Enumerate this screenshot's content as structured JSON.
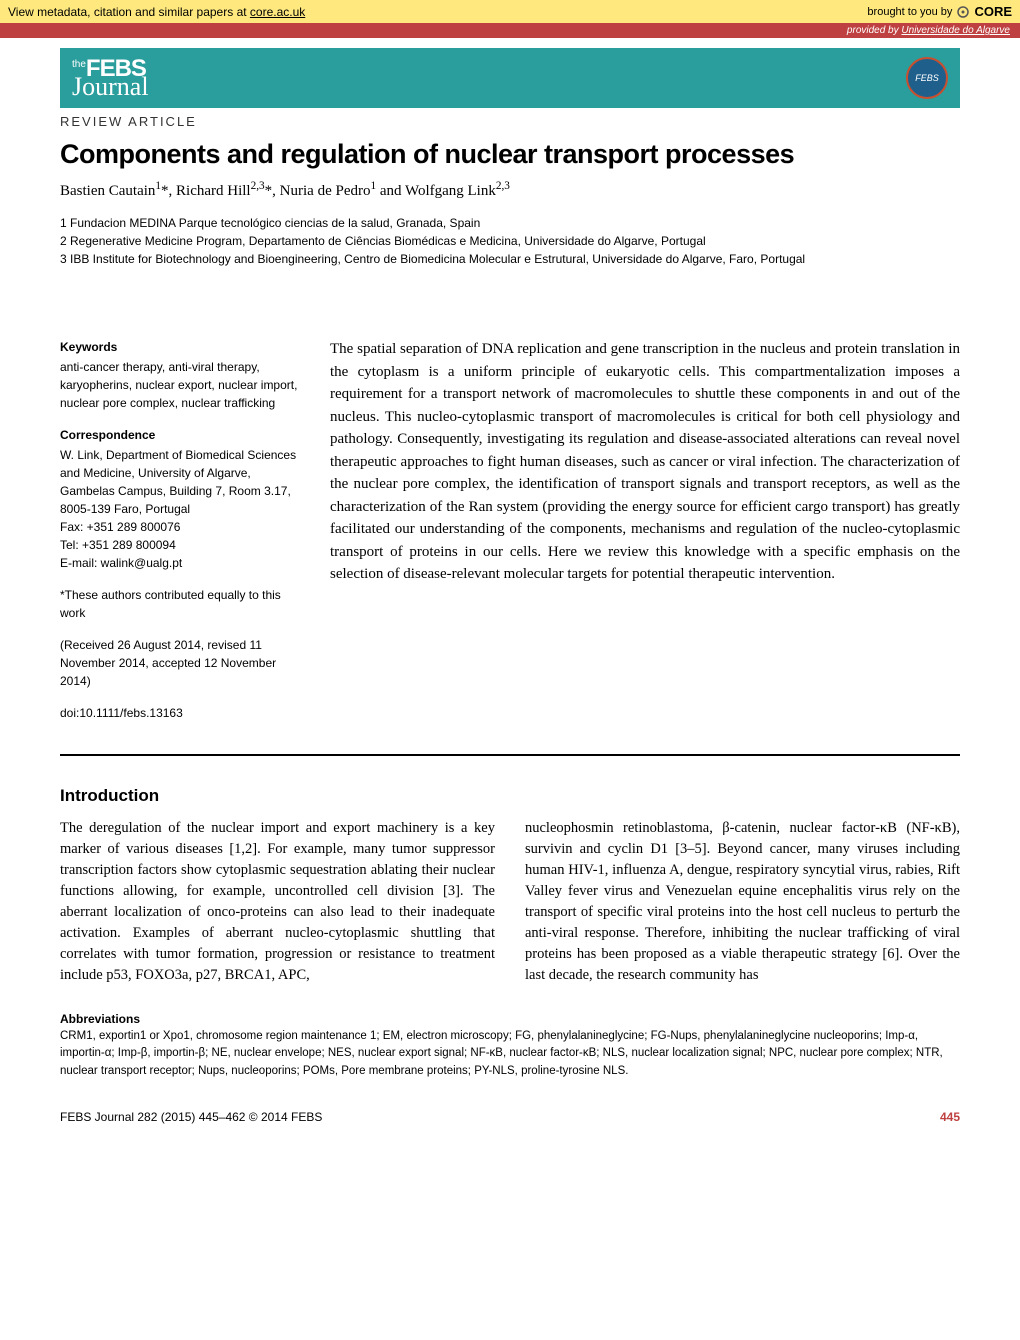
{
  "metadata_bar": {
    "left_prefix": "View metadata, citation and similar papers at ",
    "left_link": "core.ac.uk",
    "right_prefix": "brought to you by ",
    "core": "CORE"
  },
  "provider_bar": {
    "prefix": "provided by ",
    "source": "Universidade do Algarve"
  },
  "journal": {
    "the": "the",
    "name_top": "FEBS",
    "name_bottom": "Journal",
    "badge_text": "FEBS"
  },
  "article_type": "REVIEW ARTICLE",
  "title": "Components and regulation of nuclear transport processes",
  "authors_html": "Bastien Cautain<sup>1</sup>*, Richard Hill<sup>2,3</sup>*, Nuria de Pedro<sup>1</sup> and Wolfgang Link<sup>2,3</sup>",
  "affiliations": [
    "1 Fundacion MEDINA Parque tecnológico ciencias de la salud, Granada, Spain",
    "2 Regenerative Medicine Program, Departamento de Ciências Biomédicas e Medicina, Universidade do Algarve, Portugal",
    "3 IBB Institute for Biotechnology and Bioengineering, Centro de Biomedicina Molecular e Estrutural, Universidade do Algarve, Faro, Portugal"
  ],
  "sidebar": {
    "keywords_h": "Keywords",
    "keywords": "anti-cancer therapy, anti-viral therapy, karyopherins, nuclear export, nuclear import, nuclear pore complex, nuclear trafficking",
    "corr_h": "Correspondence",
    "corr": "W. Link, Department of Biomedical Sciences and Medicine, University of Algarve, Gambelas Campus, Building 7, Room 3.17, 8005-139 Faro, Portugal\nFax: +351 289 800076\nTel: +351 289 800094\nE-mail: walink@ualg.pt",
    "equal": "*These authors contributed equally to this work",
    "dates": "(Received 26 August 2014, revised 11 November 2014, accepted 12 November 2014)",
    "doi": "doi:10.1111/febs.13163"
  },
  "abstract": "The spatial separation of DNA replication and gene transcription in the nucleus and protein translation in the cytoplasm is a uniform principle of eukaryotic cells. This compartmentalization imposes a requirement for a transport network of macromolecules to shuttle these components in and out of the nucleus. This nucleo-cytoplasmic transport of macromolecules is critical for both cell physiology and pathology. Consequently, investigating its regulation and disease-associated alterations can reveal novel therapeutic approaches to fight human diseases, such as cancer or viral infection. The characterization of the nuclear pore complex, the identification of transport signals and transport receptors, as well as the characterization of the Ran system (providing the energy source for efficient cargo transport) has greatly facilitated our understanding of the components, mechanisms and regulation of the nucleo-cytoplasmic transport of proteins in our cells. Here we review this knowledge with a specific emphasis on the selection of disease-relevant molecular targets for potential therapeutic intervention.",
  "intro_heading": "Introduction",
  "intro_col1": "The deregulation of the nuclear import and export machinery is a key marker of various diseases [1,2]. For example, many tumor suppressor transcription factors show cytoplasmic sequestration ablating their nuclear functions allowing, for example, uncontrolled cell division [3]. The aberrant localization of onco-proteins can also lead to their inadequate activation. Examples of aberrant nucleo-cytoplasmic shuttling that correlates with tumor formation, progression or resistance to treatment include p53, FOXO3a, p27, BRCA1, APC,",
  "intro_col2": "nucleophosmin retinoblastoma, β-catenin, nuclear factor-κB (NF-κB), survivin and cyclin D1 [3–5]. Beyond cancer, many viruses including human HIV-1, influenza A, dengue, respiratory syncytial virus, rabies, Rift Valley fever virus and Venezuelan equine encephalitis virus rely on the transport of specific viral proteins into the host cell nucleus to perturb the anti-viral response. Therefore, inhibiting the nuclear trafficking of viral proteins has been proposed as a viable therapeutic strategy [6]. Over the last decade, the research community has",
  "abbrev_h": "Abbreviations",
  "abbrev_text": "CRM1, exportin1 or Xpo1, chromosome region maintenance 1; EM, electron microscopy; FG, phenylalanineglycine; FG-Nups, phenylalanineglycine nucleoporins; Imp-α, importin-α; Imp-β, importin-β; NE, nuclear envelope; NES, nuclear export signal; NF-κB, nuclear factor-κB; NLS, nuclear localization signal; NPC, nuclear pore complex; NTR, nuclear transport receptor; Nups, nucleoporins; POMs, Pore membrane proteins; PY-NLS, proline-tyrosine NLS.",
  "footer": {
    "citation": "FEBS Journal 282 (2015) 445–462 © 2014 FEBS",
    "page": "445"
  },
  "colors": {
    "metadata_bg": "#ffe97f",
    "provider_bg": "#bf4040",
    "journal_bg": "#2a9d9d",
    "page_num": "#bf4040"
  }
}
